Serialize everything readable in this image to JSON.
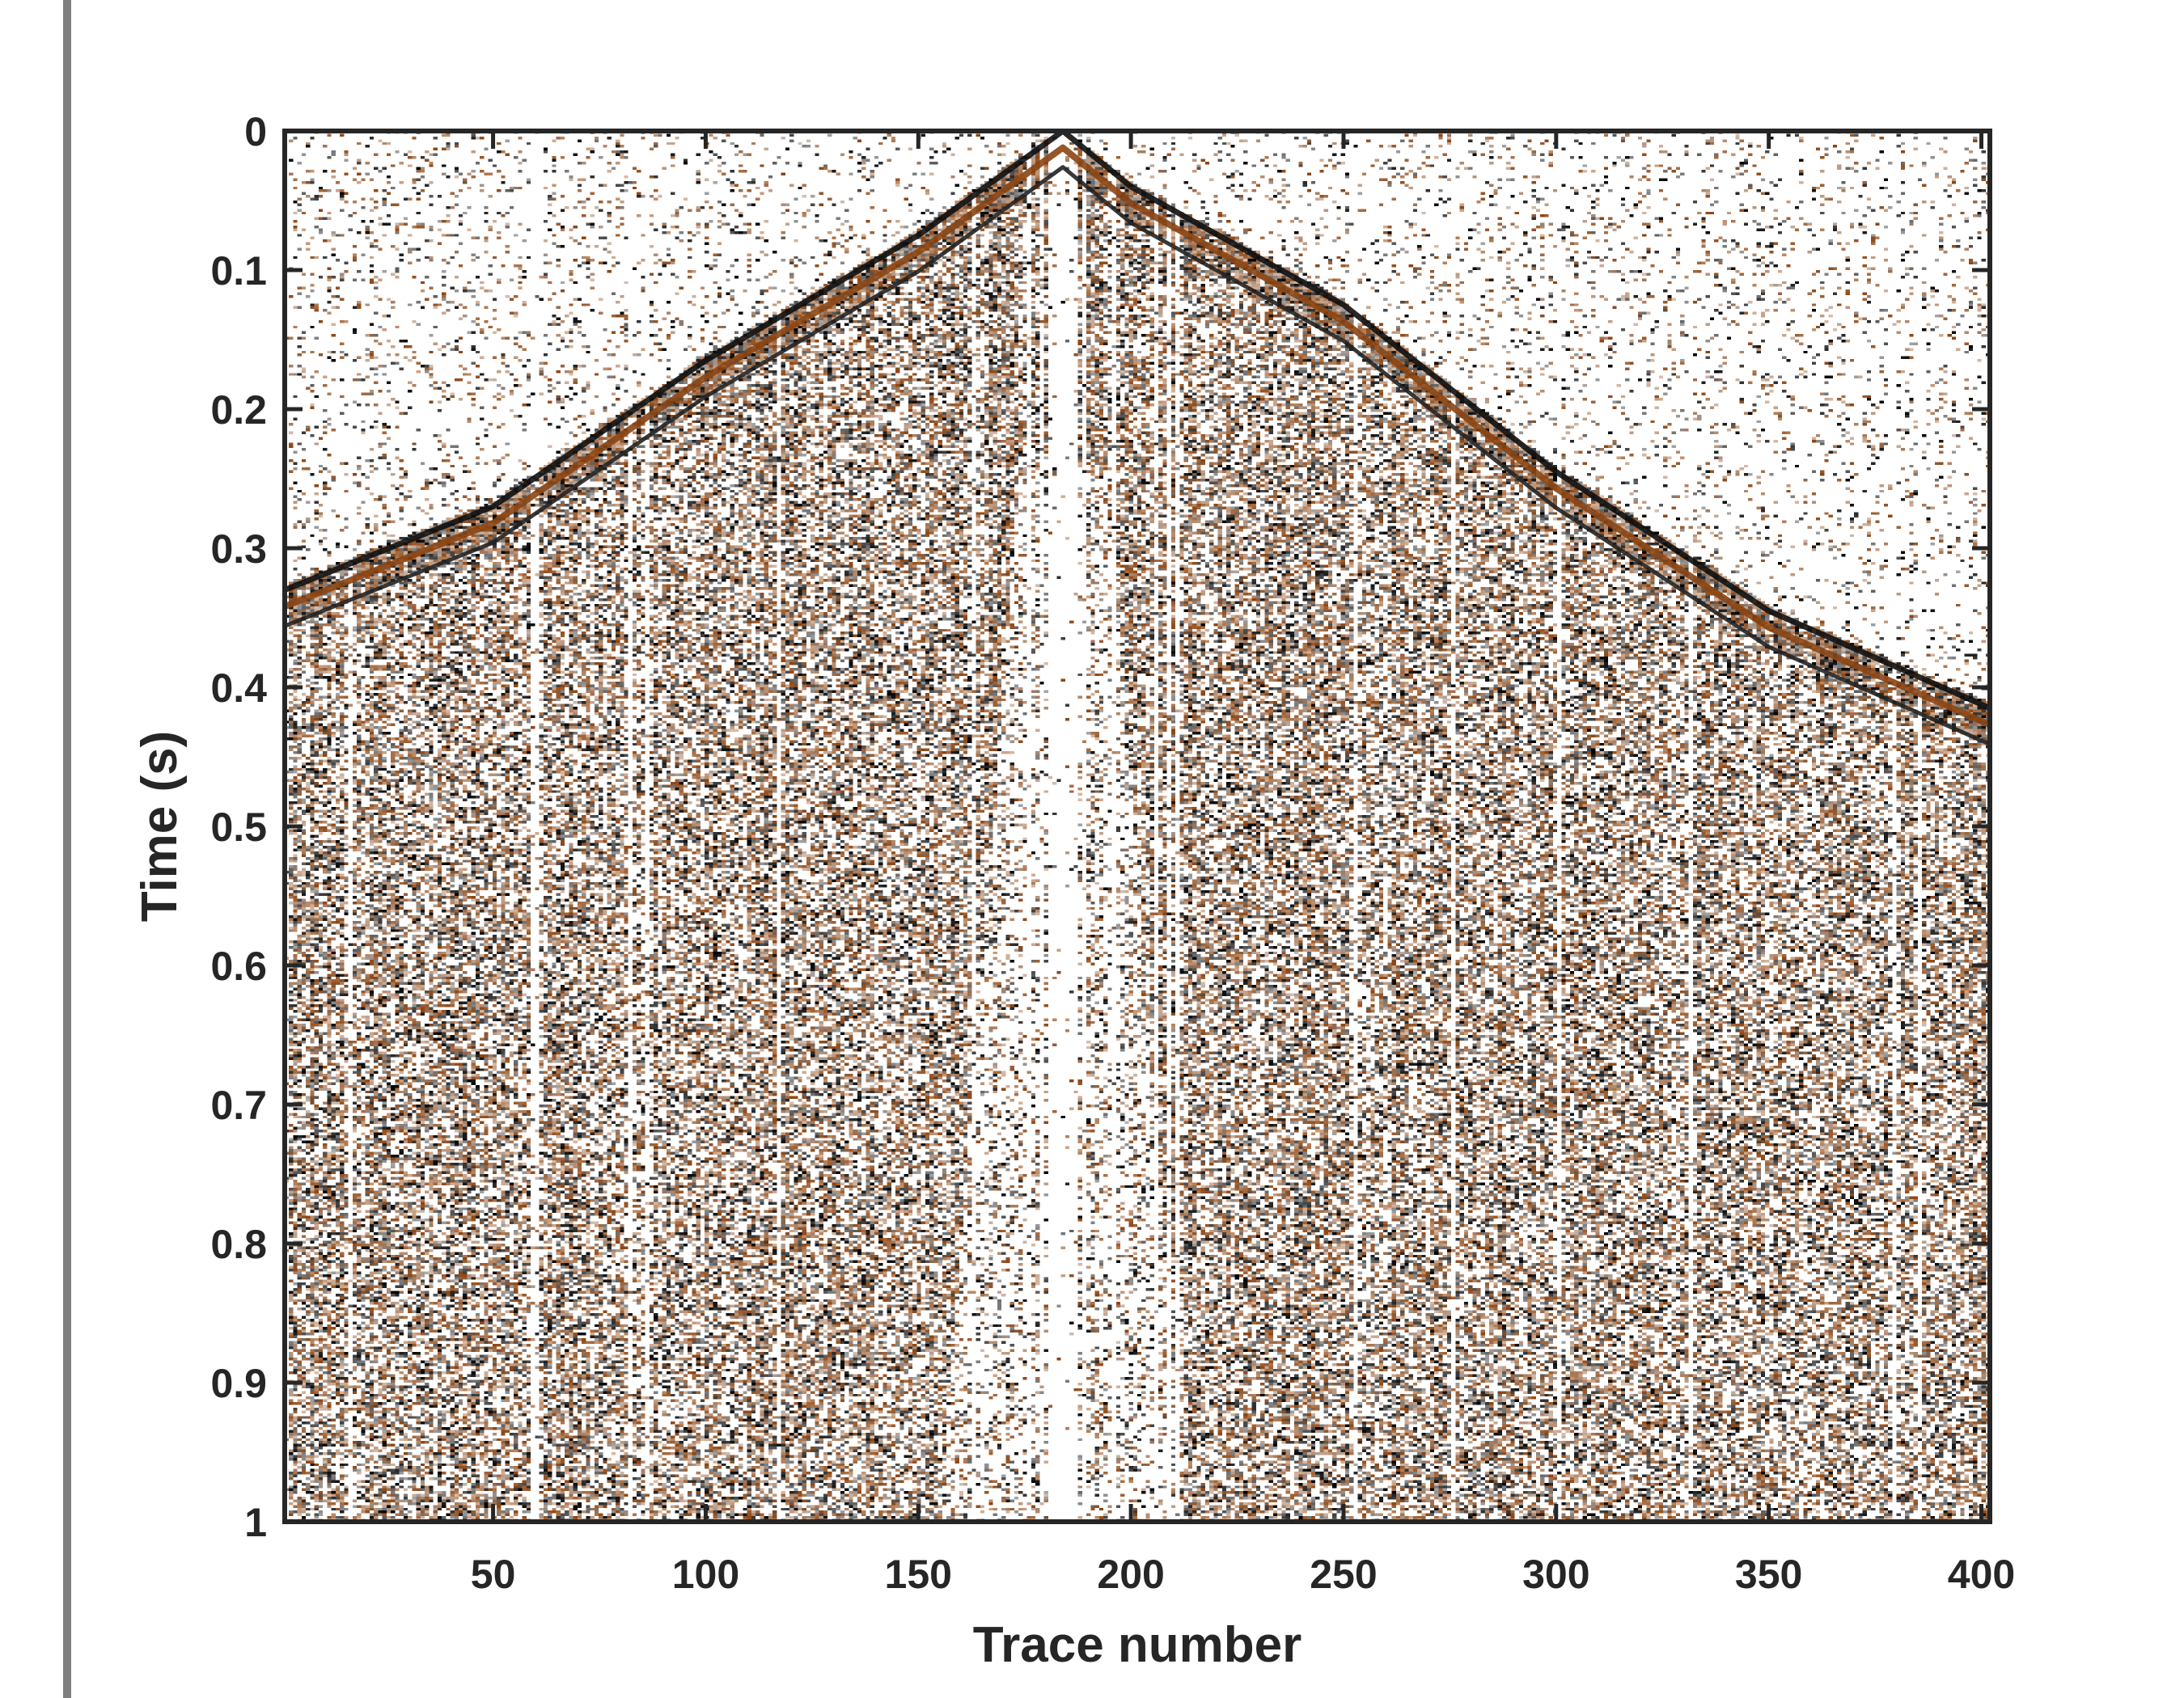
{
  "chart_data": {
    "type": "heatmap",
    "title": "",
    "xlabel": "Trace number",
    "ylabel": "Time (s)",
    "xlim": [
      1,
      402
    ],
    "ylim": [
      0,
      1
    ],
    "y_reversed": true,
    "x_ticks": [
      "50",
      "100",
      "150",
      "200",
      "250",
      "300",
      "350",
      "400"
    ],
    "y_ticks": [
      "0",
      "0.1",
      "0.2",
      "0.3",
      "0.4",
      "0.5",
      "0.6",
      "0.7",
      "0.8",
      "0.9",
      "1"
    ],
    "x_tick_values": [
      50,
      100,
      150,
      200,
      250,
      300,
      350,
      400
    ],
    "y_tick_values": [
      0,
      0.1,
      0.2,
      0.3,
      0.4,
      0.5,
      0.6,
      0.7,
      0.8,
      0.9,
      1
    ],
    "colormap": {
      "negative": "#000000",
      "zero": "#ffffff",
      "positive": "#8b4513"
    },
    "source_trace": 184,
    "first_break_times": [
      {
        "trace": 1,
        "time": 0.33
      },
      {
        "trace": 50,
        "time": 0.27
      },
      {
        "trace": 100,
        "time": 0.165
      },
      {
        "trace": 150,
        "time": 0.075
      },
      {
        "trace": 184,
        "time": 0.0
      },
      {
        "trace": 200,
        "time": 0.04
      },
      {
        "trace": 250,
        "time": 0.125
      },
      {
        "trace": 300,
        "time": 0.245
      },
      {
        "trace": 350,
        "time": 0.345
      },
      {
        "trace": 402,
        "time": 0.415
      }
    ],
    "grid": false,
    "legend": "none"
  },
  "colors": {
    "axis": "#262626",
    "frame": "#262626",
    "left_rule": "#808080"
  }
}
